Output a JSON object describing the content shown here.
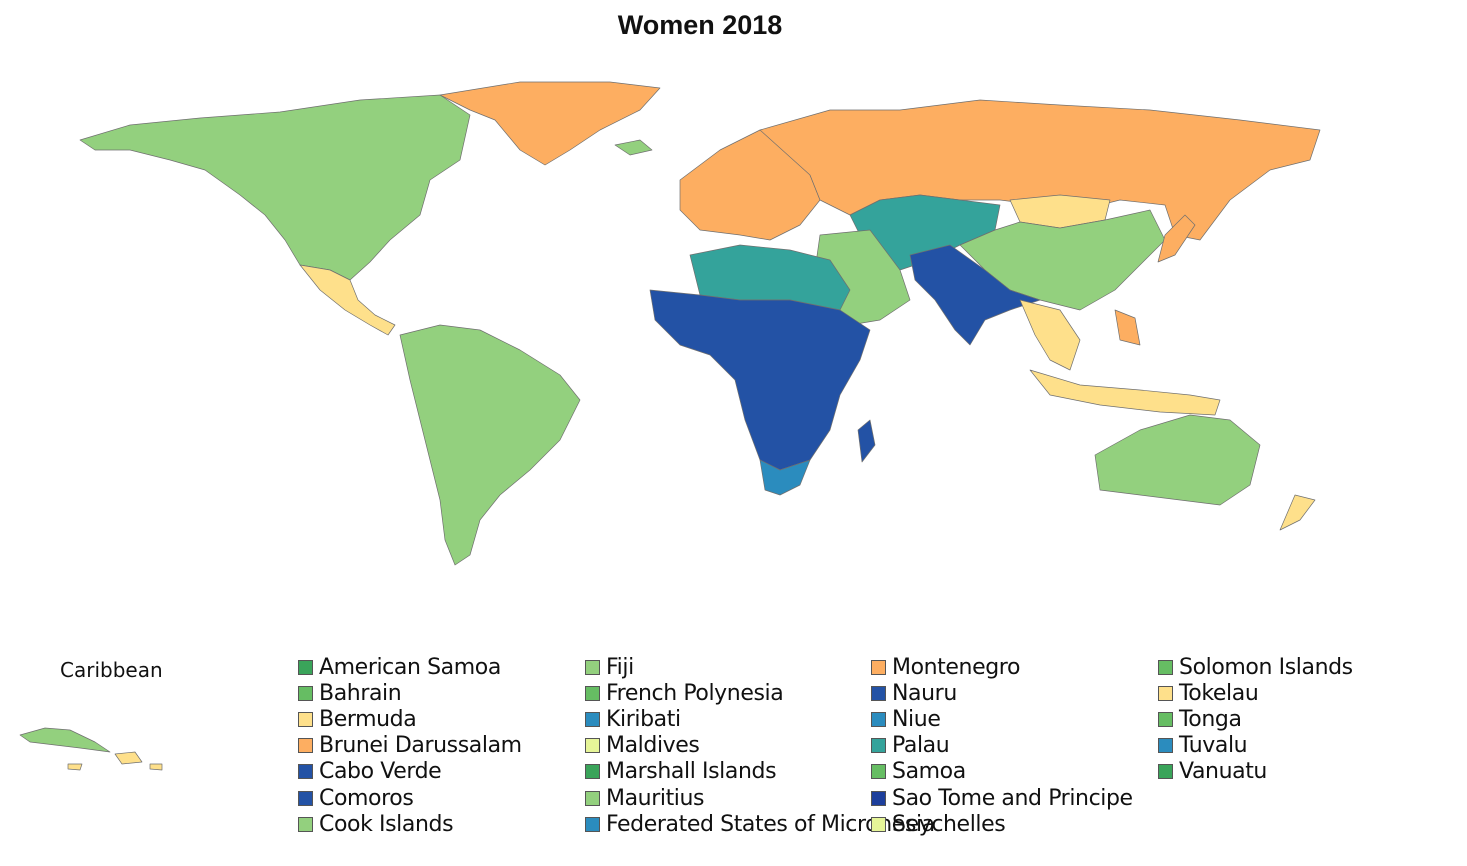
{
  "title": "Women 2018",
  "inset": {
    "label": "Caribbean"
  },
  "colors": {
    "orange": "#fdae61",
    "light_yellow": "#fee08b",
    "pale_yellow": "#e6f598",
    "light_green": "#93d07e",
    "green": "#66bd63",
    "dark_green": "#3aa45a",
    "teal": "#34a39b",
    "blue": "#2b8cbe",
    "dark_blue": "#2352a5",
    "navy": "#1d3f9c",
    "purple": "#4b2a94",
    "red_orange": "#f46d43",
    "grey": "#a8a8a8"
  },
  "regions": [
    {
      "name": "North America",
      "color": "#93d07e"
    },
    {
      "name": "Greenland",
      "color": "#fdae61"
    },
    {
      "name": "Russia",
      "color": "#fdae61"
    },
    {
      "name": "Europe",
      "color": "#fdae61"
    },
    {
      "name": "Central Asia",
      "color": "#34a39b"
    },
    {
      "name": "China",
      "color": "#93d07e"
    },
    {
      "name": "Mongolia",
      "color": "#fee08b"
    },
    {
      "name": "South Asia",
      "color": "#2352a5"
    },
    {
      "name": "Middle East",
      "color": "#93d07e"
    },
    {
      "name": "North Africa",
      "color": "#34a39b"
    },
    {
      "name": "Sub-Saharan Africa",
      "color": "#2352a5"
    },
    {
      "name": "Southern Africa",
      "color": "#2b8cbe"
    },
    {
      "name": "South America",
      "color": "#93d07e"
    },
    {
      "name": "Australia",
      "color": "#93d07e"
    },
    {
      "name": "Southeast Asia",
      "color": "#fee08b"
    }
  ],
  "legend": {
    "items": [
      {
        "label": "American Samoa",
        "color": "#3aa45a"
      },
      {
        "label": "Bahrain",
        "color": "#66bd63"
      },
      {
        "label": "Bermuda",
        "color": "#fee08b"
      },
      {
        "label": "Brunei Darussalam",
        "color": "#fdae61"
      },
      {
        "label": "Cabo Verde",
        "color": "#2352a5"
      },
      {
        "label": "Comoros",
        "color": "#2352a5"
      },
      {
        "label": "Cook Islands",
        "color": "#93d07e"
      },
      {
        "label": "Fiji",
        "color": "#93d07e"
      },
      {
        "label": "French Polynesia",
        "color": "#66bd63"
      },
      {
        "label": "Kiribati",
        "color": "#2b8cbe"
      },
      {
        "label": "Maldives",
        "color": "#e6f598"
      },
      {
        "label": "Marshall Islands",
        "color": "#3aa45a"
      },
      {
        "label": "Mauritius",
        "color": "#93d07e"
      },
      {
        "label": "Federated States of Micronesia",
        "color": "#2b8cbe"
      },
      {
        "label": "Montenegro",
        "color": "#fdae61"
      },
      {
        "label": "Nauru",
        "color": "#2352a5"
      },
      {
        "label": "Niue",
        "color": "#2b8cbe"
      },
      {
        "label": "Palau",
        "color": "#34a39b"
      },
      {
        "label": "Samoa",
        "color": "#66bd63"
      },
      {
        "label": "Sao Tome and Principe",
        "color": "#1d3f9c"
      },
      {
        "label": "Seychelles",
        "color": "#e6f598"
      },
      {
        "label": "Solomon Islands",
        "color": "#66bd63"
      },
      {
        "label": "Tokelau",
        "color": "#fee08b"
      },
      {
        "label": "Tonga",
        "color": "#66bd63"
      },
      {
        "label": "Tuvalu",
        "color": "#2b8cbe"
      },
      {
        "label": "Vanuatu",
        "color": "#3aa45a"
      }
    ]
  }
}
